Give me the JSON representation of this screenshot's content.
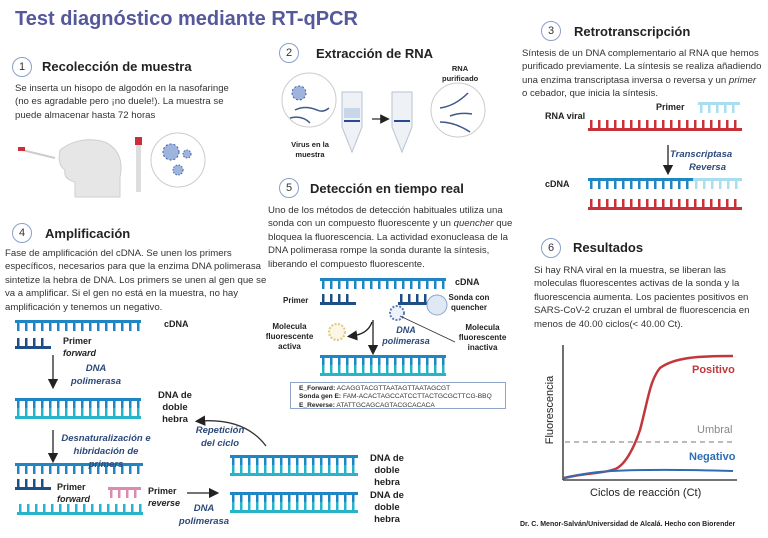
{
  "title": "Test diagnóstico mediante RT-qPCR",
  "sections": [
    {
      "number": "1",
      "heading": "Recolección de muestra",
      "text": "Se inserta un hisopo de algodón en la nasofaringe (no es agradable pero ¡no duele!). La muestra se puede  almacenar hasta 72 horas"
    },
    {
      "number": "2",
      "heading": "Extracción de RNA",
      "labels": {
        "virus": "Virus en la muestra",
        "rna": "RNA purificado"
      }
    },
    {
      "number": "3",
      "heading": "Retrotranscripción",
      "text_before": "Síntesis de un DNA complementario al RNA que hemos purificado previamente. La síntesis se realiza añadiendo una enzima transcriptasa inversa o reversa y un ",
      "text_em": "primer",
      "text_after": " o cebador, que inicia la síntesis.",
      "labels": {
        "primer": "Primer",
        "rna_viral": "RNA viral",
        "enzyme": "Transcriptasa Reversa",
        "cdna": "cDNA"
      }
    },
    {
      "number": "4",
      "heading": "Amplificación",
      "text": "Fase de amplificación del cDNA. Se unen los primers específicos, necesarios para que la enzima DNA polimerasa sintetize la hebra de DNA. Los primers se unen al gen que se va a amplificar. Si el gen no está en la muestra, no hay amplificación y tenemos un negativo.",
      "labels": {
        "cdna": "cDNA",
        "primer": "Primer",
        "forward": "forward",
        "reverse": "reverse",
        "polimerasa": "DNA polimerasa",
        "doble_hebra": "DNA de doble hebra",
        "desnat": "Desnaturalización e hibridación de primers",
        "repeticion": "Repetición del ciclo"
      }
    },
    {
      "number": "5",
      "heading": "Detección en tiempo real",
      "text_before": "Uno de los métodos de detección habituales utiliza una sonda con un compuesto fluorescente y un ",
      "text_em": "quencher",
      "text_after": " que bloquea la fluorescencia. La actividad exonucleasa de la DNA polimerasa rompe la sonda durante la síntesis, liberando el compuesto fluorescente.",
      "labels": {
        "cdna": "cDNA",
        "primer": "Primer",
        "sonda": "Sonda con quencher",
        "activa": "Molecula fluorescente activa",
        "inactiva": "Molecula fluorescente inactiva",
        "polimerasa": "DNA polimerasa"
      },
      "sequences": [
        {
          "name": "E_Forward:",
          "seq": "ACAGGTACGTTAATAGTTAATAGCGT"
        },
        {
          "name": "Sonda gen E:",
          "seq": "FAM-ACACTAGCCATCCTTACTGCGCTTCG-BBQ"
        },
        {
          "name": "E_Reverse:",
          "seq": "ATATTGCAGCAGTACGCACACA"
        }
      ]
    },
    {
      "number": "6",
      "heading": "Resultados",
      "text": "Si hay RNA viral en la muestra, se liberan las moleculas fluorescentes activas de la sonda y la fluorescencia aumenta. Los pacientes positivos en SARS-CoV-2 cruzan el umbral de fluorescencia en menos de 40.00 ciclos(< 40.00 Ct).",
      "chart": {
        "ylabel": "Fluorescencia",
        "xlabel": "Ciclos de reacción (Ct)",
        "positivo": "Positivo",
        "umbral": "Umbral",
        "negativo": "Negativo"
      }
    }
  ],
  "footer": "Dr. C. Menor-Salván/Universidad de Alcalá. Hecho con Biorender",
  "colors": {
    "title": "#55589a",
    "rna": "#c8303a",
    "dna_top": "#1f86c4",
    "dna_bottom": "#27b3c9",
    "primer_reverse": "#d98cb0",
    "positivo": "#c0383a",
    "negativo": "#2e6db4",
    "umbral": "#888888"
  }
}
